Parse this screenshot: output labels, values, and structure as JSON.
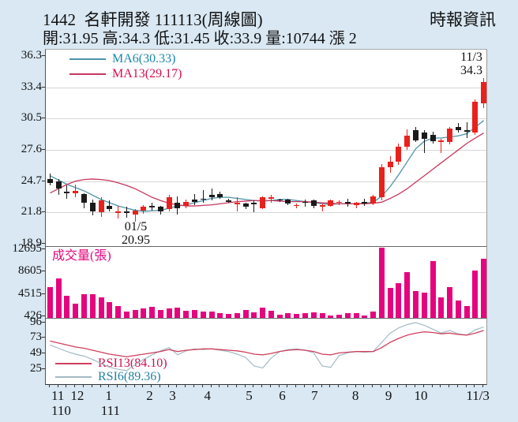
{
  "header": {
    "title": "1442  名軒開發 111113(周線圖)",
    "source": "時報資訊",
    "stats": "開:31.95 高:34.3 低:31.45 收:33.9 量:10744 漲 2"
  },
  "colors": {
    "background": "#d9e8f3",
    "panel": "#ffffff",
    "grid": "#d7d7d7",
    "candle_up": "#e8211d",
    "candle_down": "#1a1a1a",
    "ma6_line": "#4e93a8",
    "ma13_line": "#c8375f",
    "volume_bar": "#e5047e",
    "rsi6_line": "#a3bac6",
    "rsi13_line": "#cf3f5c",
    "ma6_text": "#1a87ab",
    "ma13_text": "#d40e4e",
    "volume_text": "#e5047e",
    "rsi13_text": "#d40e4e",
    "rsi6_text": "#2482a6",
    "axis_text": "#111111"
  },
  "x_axis": {
    "months": [
      {
        "label": "11",
        "week": 1
      },
      {
        "label": "12",
        "week": 3.3
      },
      {
        "label": "1",
        "week": 7
      },
      {
        "label": "2",
        "week": 11.8
      },
      {
        "label": "3",
        "week": 14.5
      },
      {
        "label": "4",
        "week": 18.6
      },
      {
        "label": "5",
        "week": 23.5
      },
      {
        "label": "6",
        "week": 27.4
      },
      {
        "label": "7",
        "week": 31.2
      },
      {
        "label": "8",
        "week": 36
      },
      {
        "label": "9",
        "week": 39.9
      },
      {
        "label": "10",
        "week": 43.7
      },
      {
        "label": "11/3",
        "week": 50.4
      }
    ],
    "years": [
      {
        "label": "110",
        "week": 1.4
      },
      {
        "label": "111",
        "week": 7.2
      }
    ]
  },
  "chart_data": [
    {
      "type": "candlestick",
      "title": "1442 名軒開發 weekly price",
      "yticks": [
        36.3,
        33.4,
        30.5,
        27.6,
        24.7,
        21.8,
        18.9
      ],
      "grid_values": [
        33.4,
        30.5,
        27.6,
        24.7,
        21.8
      ],
      "scale": {
        "top": 36.9,
        "bottom": 18.6
      },
      "series_legend": [
        {
          "label": "MA6(30.33)"
        },
        {
          "label": "MA13(29.17)"
        }
      ],
      "annotations": {
        "high": {
          "line1": "11/3",
          "line2": "34.3"
        },
        "low": {
          "line1": "01/5",
          "line2": "20.95"
        }
      },
      "candles": [
        [
          24.9,
          25.4,
          24.3,
          24.5
        ],
        [
          24.7,
          24.9,
          23.4,
          24.0
        ],
        [
          23.7,
          24.3,
          23.1,
          23.6
        ],
        [
          23.6,
          24.4,
          23.2,
          23.8
        ],
        [
          23.5,
          23.6,
          22.2,
          22.7
        ],
        [
          22.7,
          23.0,
          21.5,
          21.9
        ],
        [
          21.8,
          23.2,
          21.4,
          22.9
        ],
        [
          22.4,
          22.9,
          21.9,
          22.1
        ],
        [
          21.8,
          22.4,
          21.2,
          21.9
        ],
        [
          21.9,
          22.3,
          21.3,
          21.8
        ],
        [
          21.6,
          22.1,
          20.95,
          22.0
        ],
        [
          22.0,
          22.5,
          21.7,
          22.3
        ],
        [
          22.4,
          22.7,
          22.0,
          22.3
        ],
        [
          22.3,
          22.4,
          21.6,
          21.9
        ],
        [
          22.1,
          23.4,
          21.9,
          23.2
        ],
        [
          22.7,
          23.3,
          21.6,
          22.2
        ],
        [
          22.4,
          23.0,
          22.2,
          22.8
        ],
        [
          23.0,
          23.5,
          22.5,
          22.8
        ],
        [
          23.1,
          23.9,
          22.7,
          23.0
        ],
        [
          23.4,
          24.0,
          22.9,
          23.2
        ],
        [
          23.5,
          23.7,
          23.1,
          23.2
        ],
        [
          22.9,
          23.1,
          22.7,
          22.8
        ],
        [
          22.6,
          23.2,
          21.9,
          22.7
        ],
        [
          22.6,
          22.7,
          22.1,
          22.3
        ],
        [
          22.7,
          22.9,
          21.8,
          22.6
        ],
        [
          22.2,
          23.3,
          22.1,
          23.2
        ],
        [
          23.1,
          23.4,
          22.7,
          23.2
        ],
        [
          23.0,
          23.1,
          22.8,
          22.9
        ],
        [
          23.0,
          23.1,
          22.5,
          22.6
        ],
        [
          22.4,
          22.6,
          22.2,
          22.5
        ],
        [
          22.8,
          23.0,
          22.3,
          22.7
        ],
        [
          22.9,
          23.0,
          22.2,
          22.4
        ],
        [
          22.3,
          22.6,
          21.9,
          22.5
        ],
        [
          22.4,
          23.0,
          22.3,
          22.9
        ],
        [
          22.7,
          22.9,
          22.5,
          22.8
        ],
        [
          22.8,
          23.1,
          22.3,
          22.6
        ],
        [
          22.5,
          22.8,
          22.2,
          22.7
        ],
        [
          22.8,
          23.1,
          22.4,
          22.6
        ],
        [
          22.6,
          23.4,
          22.5,
          23.3
        ],
        [
          23.2,
          26.3,
          22.9,
          26.0
        ],
        [
          26.0,
          27.0,
          25.5,
          26.5
        ],
        [
          26.5,
          28.2,
          26.2,
          27.9
        ],
        [
          27.9,
          29.5,
          27.6,
          28.9
        ],
        [
          29.4,
          29.7,
          28.3,
          28.5
        ],
        [
          29.2,
          29.4,
          27.3,
          28.6
        ],
        [
          29.0,
          29.3,
          28.2,
          28.4
        ],
        [
          28.3,
          28.6,
          27.3,
          28.5
        ],
        [
          28.3,
          29.7,
          28.1,
          29.6
        ],
        [
          29.7,
          30.1,
          29.2,
          29.4
        ],
        [
          29.4,
          30.2,
          28.7,
          29.3
        ],
        [
          29.2,
          32.3,
          29.0,
          32.1
        ],
        [
          31.95,
          34.3,
          31.45,
          33.9
        ]
      ],
      "series": [
        {
          "name": "MA6",
          "last": 30.33,
          "values": [
            25.2,
            24.8,
            24.4,
            24.1,
            23.8,
            23.4,
            23.0,
            22.7,
            22.4,
            22.2,
            22.0,
            21.9,
            21.95,
            22.0,
            22.2,
            22.4,
            22.5,
            22.7,
            22.9,
            23.1,
            23.2,
            23.2,
            23.1,
            23.0,
            22.9,
            22.85,
            22.9,
            23.0,
            23.0,
            22.9,
            22.8,
            22.7,
            22.6,
            22.55,
            22.6,
            22.6,
            22.6,
            22.65,
            22.75,
            23.3,
            24.2,
            25.3,
            26.5,
            27.7,
            28.4,
            28.7,
            28.7,
            28.8,
            28.9,
            29.1,
            29.7,
            30.33
          ]
        },
        {
          "name": "MA13",
          "last": 29.17,
          "values": [
            23.6,
            24.0,
            24.4,
            24.7,
            24.85,
            24.9,
            24.85,
            24.75,
            24.55,
            24.3,
            24.0,
            23.6,
            23.2,
            22.9,
            22.65,
            22.5,
            22.4,
            22.4,
            22.45,
            22.5,
            22.6,
            22.7,
            22.8,
            22.85,
            22.9,
            22.9,
            22.9,
            22.85,
            22.8,
            22.8,
            22.8,
            22.75,
            22.7,
            22.65,
            22.6,
            22.6,
            22.6,
            22.6,
            22.65,
            22.75,
            23.1,
            23.5,
            24.0,
            24.6,
            25.2,
            25.8,
            26.4,
            27.0,
            27.6,
            28.2,
            28.7,
            29.17
          ]
        }
      ]
    },
    {
      "type": "bar",
      "title": "成交量(張)",
      "yticks": [
        12695,
        8605,
        4515,
        426
      ],
      "scale": {
        "top": 13100,
        "bottom": 0
      },
      "values": [
        5600,
        7200,
        4100,
        2600,
        4300,
        4300,
        3700,
        2900,
        2200,
        1100,
        1400,
        1700,
        2000,
        1500,
        1800,
        1900,
        1300,
        1400,
        1100,
        1200,
        900,
        700,
        900,
        1400,
        1000,
        1900,
        1300,
        600,
        800,
        700,
        900,
        1000,
        800,
        500,
        600,
        900,
        800,
        400,
        1100,
        12800,
        5500,
        6400,
        8400,
        4900,
        4600,
        10300,
        3700,
        5600,
        3200,
        2100,
        8600,
        10744
      ]
    },
    {
      "type": "line",
      "title": "RSI",
      "yticks": [
        96,
        73,
        49,
        25
      ],
      "scale": {
        "top": 102,
        "bottom": 0
      },
      "series_legend": [
        {
          "label": "RSI13(84.10)"
        },
        {
          "label": "RSI6(89.36)"
        }
      ],
      "series": [
        {
          "name": "RSI13",
          "last": 84.1,
          "values": [
            68,
            65,
            62,
            59,
            57,
            54,
            51,
            48,
            46,
            44,
            46,
            48,
            50,
            52,
            55,
            52,
            54,
            55,
            56,
            56,
            55,
            54,
            53,
            51,
            48,
            47,
            49,
            52,
            54,
            55,
            54,
            52,
            48,
            47,
            50,
            51,
            52,
            52,
            52,
            58,
            66,
            72,
            77,
            80,
            82,
            81,
            79,
            80,
            78,
            77,
            80,
            84.1
          ]
        },
        {
          "name": "RSI6",
          "last": 89.36,
          "values": [
            62,
            57,
            52,
            48,
            45,
            40,
            34,
            28,
            25,
            23,
            32,
            40,
            47,
            53,
            58,
            47,
            53,
            56,
            55,
            56,
            54,
            52,
            48,
            43,
            30,
            27,
            42,
            52,
            55,
            56,
            54,
            50,
            30,
            28,
            46,
            50,
            52,
            51,
            52,
            66,
            80,
            88,
            93,
            96,
            92,
            86,
            80,
            84,
            79,
            77,
            85,
            89.36
          ]
        }
      ]
    }
  ]
}
